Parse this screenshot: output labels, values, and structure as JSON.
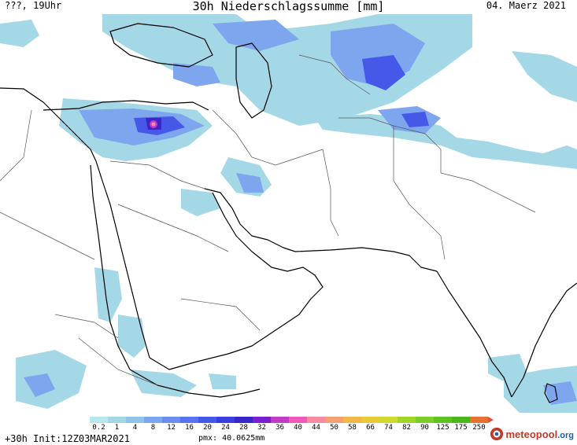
{
  "header": {
    "location_time": "???, 19Uhr",
    "title": "30h Niederschlagssumme [mm]",
    "date": "04. Maerz 2021"
  },
  "map": {
    "region": "Middle East / Arabian Peninsula / South Asia",
    "coastline_color": "#000000",
    "border_color": "#555555",
    "max_intensity_location": "Mesopotamia / southeastern Turkey"
  },
  "legend": {
    "labels": [
      "0.2",
      "1",
      "4",
      "8",
      "12",
      "16",
      "20",
      "24",
      "28",
      "32",
      "36",
      "40",
      "44",
      "50",
      "58",
      "66",
      "74",
      "82",
      "90",
      "125",
      "175",
      "250"
    ],
    "colors": [
      "#b7e7e8",
      "#a5d8e6",
      "#8fc3e8",
      "#7ea6ef",
      "#6b8df2",
      "#5972f2",
      "#4558e8",
      "#3a3ddf",
      "#3a25c8",
      "#7a1fd0",
      "#c23ac8",
      "#f05ab8",
      "#f58aa0",
      "#f4a070",
      "#f0b84a",
      "#eac93a",
      "#cddb2c",
      "#9fd62a",
      "#7ccd28",
      "#5cc320",
      "#4bb61c",
      "#e87030"
    ]
  },
  "footer": {
    "init": "+30h Init:12Z03MAR2021",
    "pmx": "pmx: 40.0625mm",
    "logo_main": "meteopool",
    "logo_domain": ".org"
  }
}
